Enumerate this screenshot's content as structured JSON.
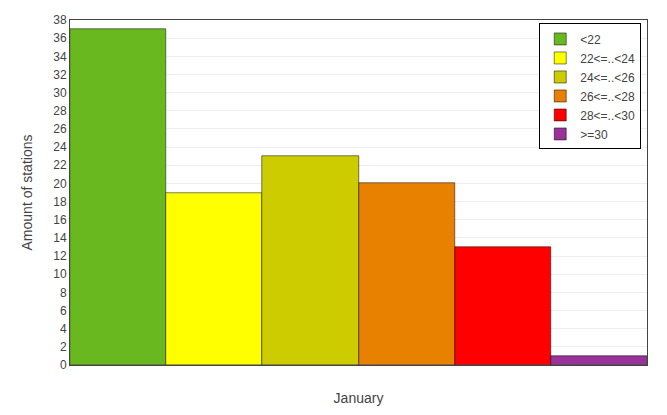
{
  "chart_data": {
    "type": "bar",
    "xlabel": "January",
    "ylabel": "Amount of stations",
    "categories": [
      "<22",
      "22<=..<24",
      "24<=..<26",
      "26<=..<28",
      "28<=..<30",
      ">=30"
    ],
    "values": [
      37,
      19,
      23,
      20,
      13,
      1
    ],
    "colors": [
      "#6ab820",
      "#ffff00",
      "#cccc00",
      "#e88000",
      "#ff0000",
      "#993399"
    ],
    "ylim": [
      0,
      38
    ],
    "yticks": [
      0,
      2,
      4,
      6,
      8,
      10,
      12,
      14,
      16,
      18,
      20,
      22,
      24,
      26,
      28,
      30,
      32,
      34,
      36,
      38
    ],
    "grid": true,
    "legend": "upper right",
    "tick_labels": "y"
  }
}
